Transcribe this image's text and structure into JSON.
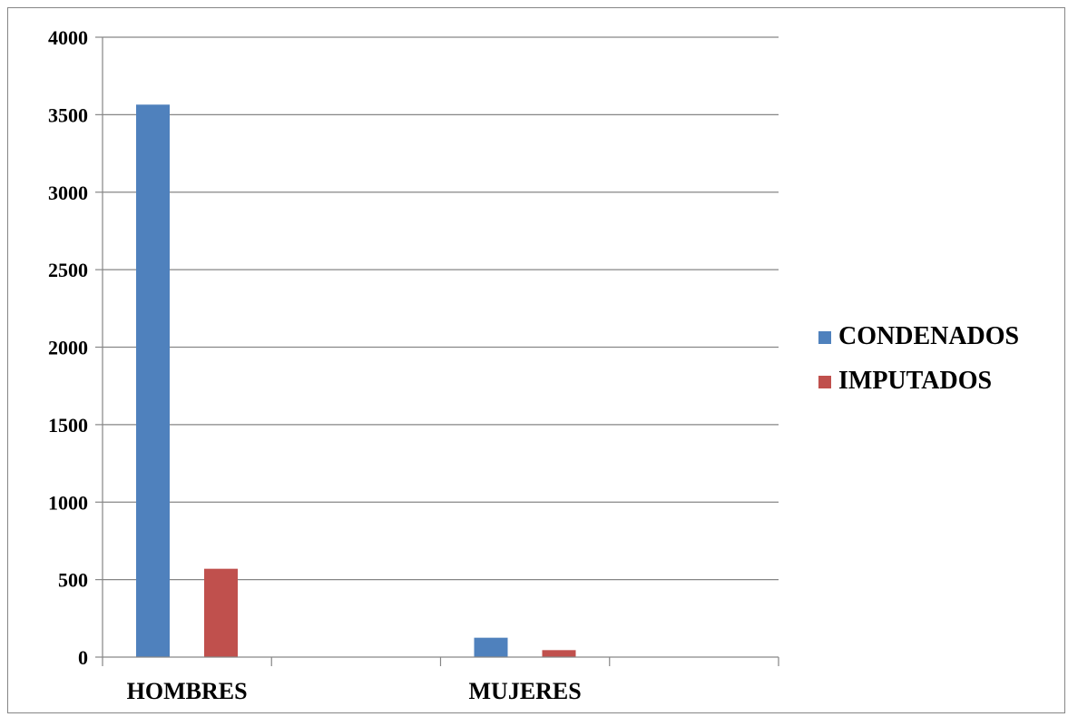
{
  "chart_data": {
    "type": "bar",
    "title": "",
    "xlabel": "",
    "ylabel": "",
    "categories": [
      "HOMBRES",
      "MUJERES"
    ],
    "series": [
      {
        "name": "CONDENADOS",
        "values": [
          3565,
          125
        ],
        "color": "#4F81BD"
      },
      {
        "name": "IMPUTADOS",
        "values": [
          570,
          45
        ],
        "color": "#C0504D"
      }
    ],
    "ylim": [
      0,
      4000
    ],
    "yticks": [
      "0",
      "500",
      "1000",
      "1500",
      "2000",
      "2500",
      "3000",
      "3500",
      "4000"
    ],
    "grid": true,
    "legend_position": "right"
  }
}
